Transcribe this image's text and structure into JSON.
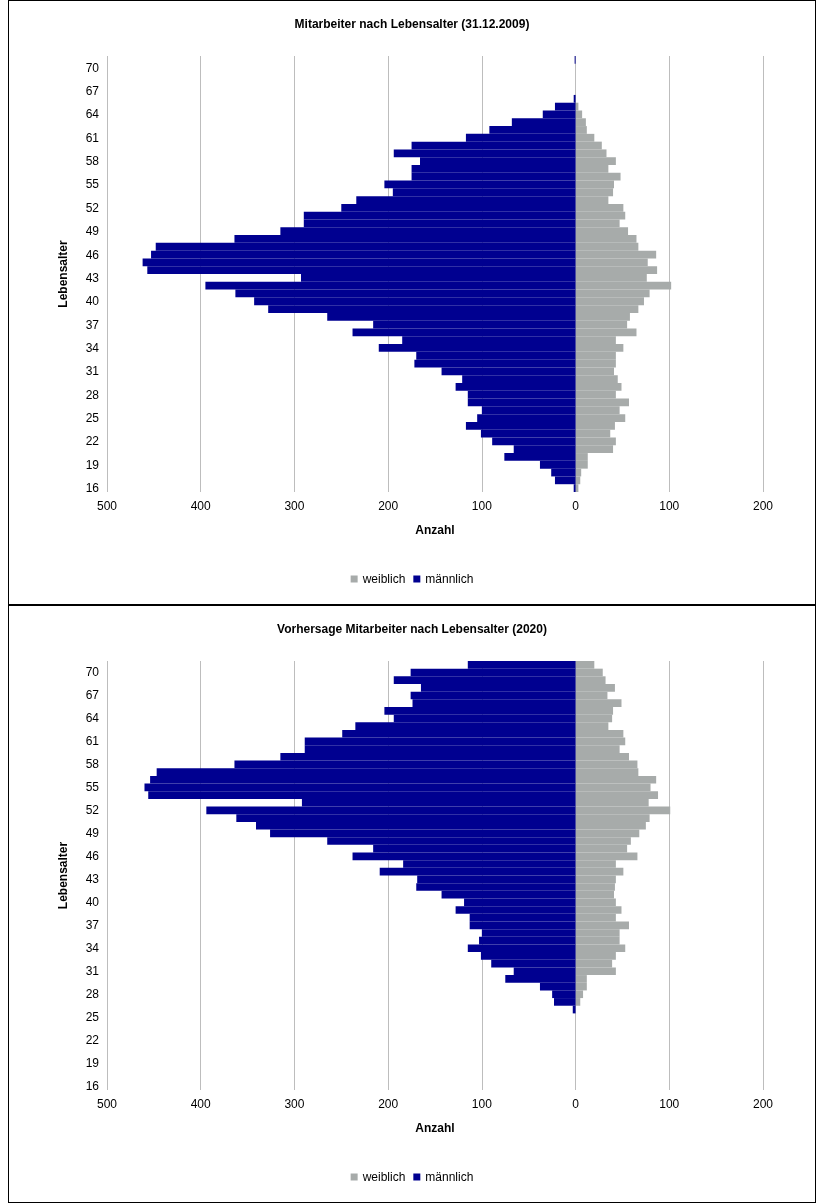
{
  "chart_data": [
    {
      "type": "bar",
      "orientation": "horizontal",
      "stacked": true,
      "title": "Mitarbeiter nach Lebensalter (31.12.2009)",
      "xlabel": "Anzahl",
      "ylabel": "Lebensalter",
      "categories": [
        null,
        "70",
        null,
        null,
        "67",
        null,
        null,
        "64",
        null,
        null,
        "61",
        null,
        null,
        "58",
        null,
        null,
        "55",
        null,
        null,
        "52",
        null,
        null,
        "49",
        null,
        null,
        "46",
        null,
        null,
        "43",
        null,
        null,
        "40",
        null,
        null,
        "37",
        null,
        null,
        "34",
        null,
        null,
        "31",
        null,
        null,
        "28",
        null,
        null,
        "25",
        null,
        null,
        "22",
        null,
        null,
        "19",
        null,
        null,
        "16"
      ],
      "series": [
        {
          "name": "weiblich",
          "color": "#a7abaa",
          "values": [
            null,
            null,
            null,
            null,
            null,
            null,
            3,
            7,
            11,
            12,
            20,
            28,
            33,
            43,
            35,
            48,
            41,
            40,
            35,
            51,
            53,
            47,
            56,
            65,
            67,
            86,
            77,
            87,
            76,
            102,
            79,
            73,
            67,
            58,
            55,
            65,
            43,
            51,
            43,
            43,
            41,
            45,
            49,
            43,
            57,
            47,
            53,
            42,
            37,
            43,
            40,
            13,
            13,
            6,
            5,
            3
          ]
        },
        {
          "name": "männlich",
          "color": "#000090",
          "values": [
            -1,
            null,
            null,
            null,
            null,
            -2,
            -22,
            -35,
            -68,
            -92,
            -117,
            -175,
            -194,
            -166,
            -175,
            -175,
            -204,
            -195,
            -234,
            -250,
            -290,
            -290,
            -315,
            -364,
            -448,
            -453,
            -462,
            -457,
            -293,
            -395,
            -363,
            -343,
            -328,
            -265,
            -216,
            -238,
            -185,
            -210,
            -170,
            -172,
            -143,
            -121,
            -128,
            -115,
            -115,
            -100,
            -105,
            -117,
            -101,
            -89,
            -66,
            -76,
            -38,
            -26,
            -22,
            -2
          ]
        }
      ],
      "xlim": [
        -500,
        200
      ],
      "xticks": [
        {
          "value": -500,
          "label": "500"
        },
        {
          "value": -400,
          "label": "400"
        },
        {
          "value": -300,
          "label": "300"
        },
        {
          "value": -200,
          "label": "200"
        },
        {
          "value": -100,
          "label": "100"
        },
        0,
        100,
        200
      ],
      "grid": "x",
      "legend": "bottom"
    },
    {
      "type": "bar",
      "orientation": "horizontal",
      "stacked": true,
      "title": "Vorhersage Mitarbeiter nach Lebensalter (2020)",
      "xlabel": "Anzahl",
      "ylabel": "Lebensalter",
      "categories": [
        null,
        "70",
        null,
        null,
        "67",
        null,
        null,
        "64",
        null,
        null,
        "61",
        null,
        null,
        "58",
        null,
        null,
        "55",
        null,
        null,
        "52",
        null,
        null,
        "49",
        null,
        null,
        "46",
        null,
        null,
        "43",
        null,
        null,
        "40",
        null,
        null,
        "37",
        null,
        null,
        "34",
        null,
        null,
        "31",
        null,
        null,
        "28",
        null,
        null,
        "25",
        null,
        null,
        "22",
        null,
        null,
        "19",
        null,
        null,
        "16"
      ],
      "series": [
        {
          "name": "weiblich",
          "color": "#a7abaa",
          "values": [
            20,
            29,
            32,
            42,
            34,
            49,
            40,
            39,
            35,
            51,
            53,
            47,
            57,
            66,
            67,
            86,
            80,
            88,
            78,
            101,
            79,
            75,
            68,
            59,
            55,
            66,
            43,
            51,
            43,
            42,
            41,
            43,
            49,
            43,
            57,
            47,
            47,
            53,
            43,
            39,
            43,
            12,
            12,
            8,
            5,
            null,
            null,
            null,
            null,
            null,
            null,
            null,
            null,
            null,
            null,
            null
          ]
        },
        {
          "name": "männlich",
          "color": "#000090",
          "values": [
            -115,
            -176,
            -194,
            -165,
            -176,
            -174,
            -204,
            -194,
            -235,
            -249,
            -289,
            -289,
            -315,
            -364,
            -447,
            -454,
            -460,
            -456,
            -292,
            -394,
            -362,
            -341,
            -326,
            -265,
            -216,
            -238,
            -184,
            -209,
            -169,
            -170,
            -143,
            -119,
            -128,
            -113,
            -113,
            -100,
            -103,
            -115,
            -101,
            -90,
            -66,
            -75,
            -38,
            -25,
            -23,
            -3,
            null,
            null,
            null,
            null,
            null,
            null,
            null,
            null,
            null,
            null
          ]
        }
      ],
      "xlim": [
        -500,
        200
      ],
      "xticks": [
        {
          "value": -500,
          "label": "500"
        },
        {
          "value": -400,
          "label": "400"
        },
        {
          "value": -300,
          "label": "300"
        },
        {
          "value": -200,
          "label": "200"
        },
        {
          "value": -100,
          "label": "100"
        },
        0,
        100,
        200
      ],
      "grid": "x",
      "legend": "bottom"
    }
  ]
}
